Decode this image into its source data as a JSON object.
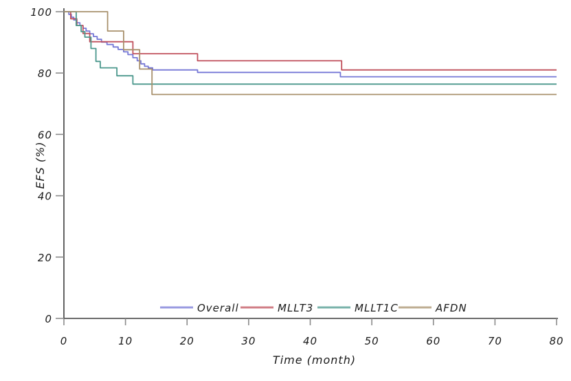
{
  "chart_data": {
    "type": "line",
    "variant": "kaplan-meier-step-curves, hand-drawn sketch style",
    "title": "",
    "xlabel": "Time (month)",
    "ylabel": "EFS (%)",
    "xlim": [
      0,
      80
    ],
    "ylim": [
      0,
      100
    ],
    "x_ticks": [
      0,
      10,
      20,
      30,
      40,
      50,
      60,
      70,
      80
    ],
    "y_ticks": [
      0,
      20,
      40,
      60,
      80,
      100
    ],
    "grid": false,
    "legend": {
      "position": "inside-bottom-center",
      "entries": [
        "Overall",
        "MLLT3",
        "MLLT1C",
        "AFDN"
      ]
    },
    "series": [
      {
        "name": "Overall",
        "color": "#7577d6",
        "steps": [
          [
            0,
            100
          ],
          [
            0.8,
            99.1
          ],
          [
            1.2,
            98.2
          ],
          [
            1.6,
            97.3
          ],
          [
            2.1,
            96.4
          ],
          [
            2.6,
            95.5
          ],
          [
            3.1,
            94.6
          ],
          [
            3.6,
            93.7
          ],
          [
            4.2,
            92.8
          ],
          [
            4.8,
            91.9
          ],
          [
            5.4,
            91.0
          ],
          [
            6.1,
            90.1
          ],
          [
            7.0,
            89.3
          ],
          [
            8.0,
            88.5
          ],
          [
            8.8,
            87.7
          ],
          [
            9.7,
            86.9
          ],
          [
            10.4,
            86.0
          ],
          [
            11.2,
            85.0
          ],
          [
            11.9,
            84.0
          ],
          [
            12.5,
            83.0
          ],
          [
            13.1,
            82.2
          ],
          [
            13.7,
            81.7
          ],
          [
            14.4,
            81.0
          ],
          [
            21.7,
            80.2
          ],
          [
            44.9,
            78.8
          ]
        ],
        "end_time": 80,
        "final_value": 78.8
      },
      {
        "name": "MLLT3",
        "color": "#c0505c",
        "steps": [
          [
            0,
            100
          ],
          [
            1.1,
            97.7
          ],
          [
            2.1,
            95.5
          ],
          [
            3.1,
            92.9
          ],
          [
            4.2,
            90.2
          ],
          [
            11.2,
            86.3
          ],
          [
            21.7,
            84.0
          ],
          [
            45.1,
            81.0
          ]
        ],
        "end_time": 80,
        "final_value": 81.0
      },
      {
        "name": "MLLT1C",
        "color": "#4a978c",
        "steps": [
          [
            0,
            100
          ],
          [
            2.0,
            95.5
          ],
          [
            2.8,
            93.5
          ],
          [
            3.4,
            91.7
          ],
          [
            4.4,
            88.0
          ],
          [
            5.2,
            83.8
          ],
          [
            5.9,
            81.7
          ],
          [
            8.6,
            79.1
          ],
          [
            11.2,
            76.4
          ]
        ],
        "end_time": 80,
        "final_value": 76.4
      },
      {
        "name": "AFDN",
        "color": "#a8906c",
        "steps": [
          [
            0,
            100
          ],
          [
            7.1,
            93.7
          ],
          [
            9.7,
            87.6
          ],
          [
            12.3,
            81.3
          ],
          [
            14.3,
            73.0
          ]
        ],
        "end_time": 80,
        "final_value": 73.0
      }
    ]
  },
  "colors": {
    "background": "#ffffff",
    "axis": "#3a3a3a",
    "tick": "#8a8a8a",
    "text": "#1a1a1a"
  }
}
